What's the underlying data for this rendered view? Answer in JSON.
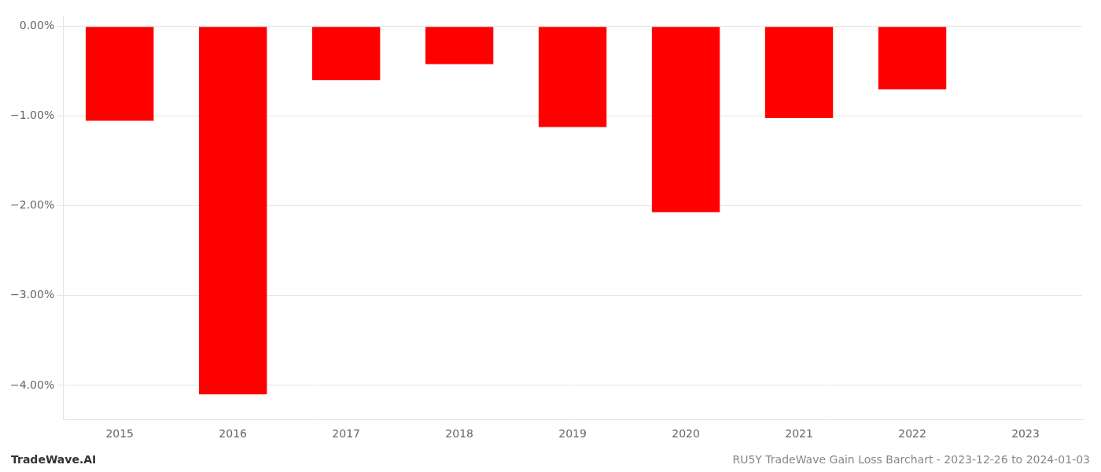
{
  "chart_data": {
    "type": "bar",
    "title": "RU5Y TradeWave Gain Loss Barchart - 2023-12-26 to 2024-01-03",
    "annotations": [
      "TradeWave.AI"
    ],
    "categories": [
      "2015",
      "2016",
      "2017",
      "2018",
      "2019",
      "2020",
      "2021",
      "2022",
      "2023"
    ],
    "values": [
      -1.05,
      -4.1,
      -0.6,
      -0.42,
      -1.12,
      -2.07,
      -1.02,
      -0.7,
      0.0
    ],
    "color": "#ff0000",
    "ylim": [
      -4.38,
      0.12
    ],
    "yticks": [
      {
        "value": 0.0,
        "label": "0.00%"
      },
      {
        "value": -1.0,
        "label": "−1.00%"
      },
      {
        "value": -2.0,
        "label": "−2.00%"
      },
      {
        "value": -3.0,
        "label": "−3.00%"
      },
      {
        "value": -4.0,
        "label": "−4.00%"
      }
    ],
    "grid": true
  }
}
